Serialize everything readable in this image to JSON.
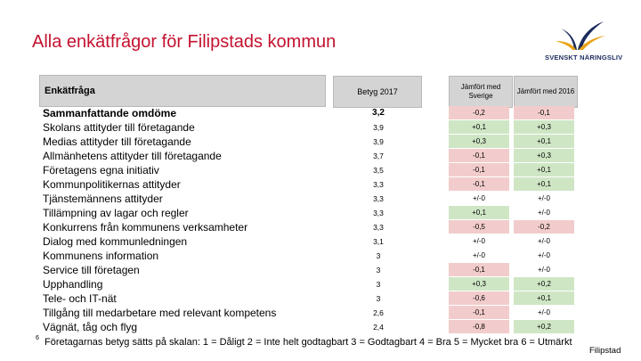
{
  "slide": {
    "title": "Alla enkätfrågor för Filipstads kommun",
    "logo_text": "SVENSKT NÄRINGSLIV",
    "footnote_number": "6",
    "footnote": "Företagarnas betyg sätts på skalan: 1 = Dåligt 2 = Inte helt godtagbart 3 = Godtagbart 4 = Bra 5 = Mycket bra 6 = Utmärkt",
    "place": "Filipstad",
    "colors": {
      "title": "#c4122f",
      "negative": "#f2cccc",
      "positive": "#cfe6c5",
      "header_bg": "#d4d4d4"
    }
  },
  "table": {
    "header": {
      "question": "Enkätfråga",
      "score": "Betyg 2017",
      "vs_sweden": "Jämfört med Sverige",
      "vs_2016": "Jämfört med 2016"
    },
    "rows": [
      {
        "question": "Sammanfattande omdöme",
        "score": "3,2",
        "vs_sweden": "-0,2",
        "vs_2016": "-0,1"
      },
      {
        "question": "Skolans attityder till företagande",
        "score": "3,9",
        "vs_sweden": "+0,1",
        "vs_2016": "+0,3"
      },
      {
        "question": "Medias attityder till företagande",
        "score": "3,9",
        "vs_sweden": "+0,3",
        "vs_2016": "+0,1"
      },
      {
        "question": "Allmänhetens attityder till företagande",
        "score": "3,7",
        "vs_sweden": "-0,1",
        "vs_2016": "+0,3"
      },
      {
        "question": "Företagens egna initiativ",
        "score": "3,5",
        "vs_sweden": "-0,1",
        "vs_2016": "+0,1"
      },
      {
        "question": "Kommunpolitikernas attityder",
        "score": "3,3",
        "vs_sweden": "-0,1",
        "vs_2016": "+0,1"
      },
      {
        "question": "Tjänstemännens attityder",
        "score": "3,3",
        "vs_sweden": "+/-0",
        "vs_2016": "+/-0"
      },
      {
        "question": "Tillämpning av lagar och regler",
        "score": "3,3",
        "vs_sweden": "+0,1",
        "vs_2016": "+/-0"
      },
      {
        "question": "Konkurrens från kommunens verksamheter",
        "score": "3,3",
        "vs_sweden": "-0,5",
        "vs_2016": "-0,2"
      },
      {
        "question": "Dialog med kommunledningen",
        "score": "3,1",
        "vs_sweden": "+/-0",
        "vs_2016": "+/-0"
      },
      {
        "question": "Kommunens information",
        "score": "3",
        "vs_sweden": "+/-0",
        "vs_2016": "+/-0"
      },
      {
        "question": "Service till företagen",
        "score": "3",
        "vs_sweden": "-0,1",
        "vs_2016": "+/-0"
      },
      {
        "question": "Upphandling",
        "score": "3",
        "vs_sweden": "+0,3",
        "vs_2016": "+0,2"
      },
      {
        "question": "Tele- och IT-nät",
        "score": "3",
        "vs_sweden": "-0,6",
        "vs_2016": "+0,1"
      },
      {
        "question": "Tillgång till medarbetare med relevant kompetens",
        "score": "2,6",
        "vs_sweden": "-0,1",
        "vs_2016": "+/-0"
      },
      {
        "question": "Vägnät, tåg och flyg",
        "score": "2,4",
        "vs_sweden": "-0,8",
        "vs_2016": "+0,2"
      }
    ]
  }
}
